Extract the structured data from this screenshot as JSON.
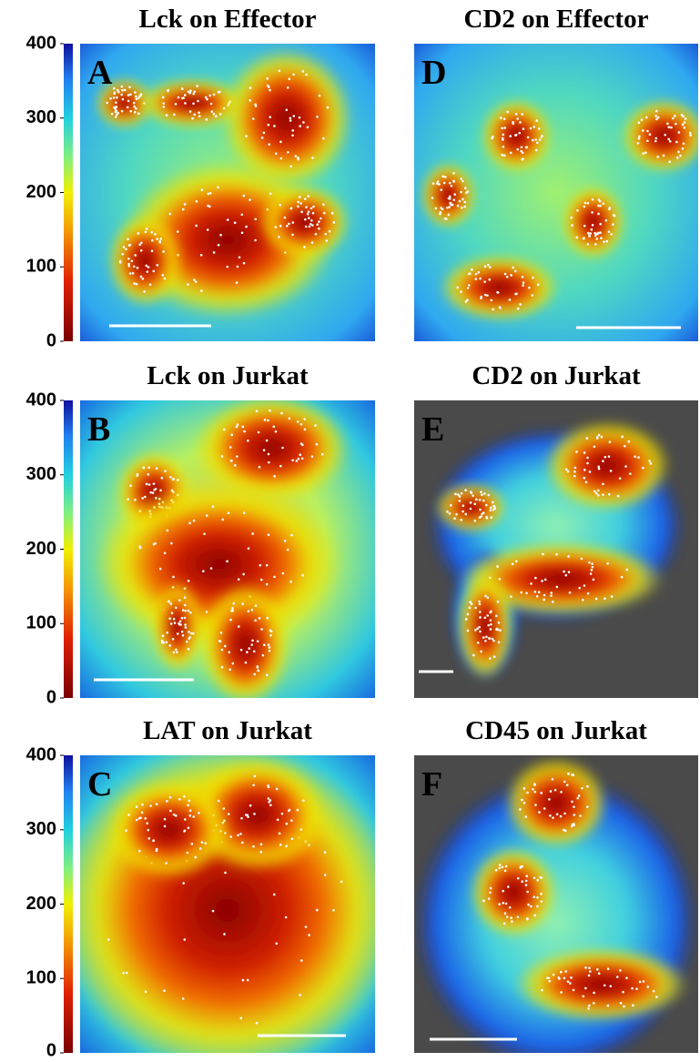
{
  "colorbar": {
    "lim": [
      0,
      400
    ],
    "ticks": [
      0,
      100,
      200,
      300,
      400
    ]
  },
  "panels": [
    {
      "title": "Lck on Effector",
      "letter": "A"
    },
    {
      "title": "Lck on Jurkat",
      "letter": "B"
    },
    {
      "title": "LAT on Jurkat",
      "letter": "C"
    },
    {
      "title": "CD2 on Effector",
      "letter": "D"
    },
    {
      "title": "CD2 on Jurkat",
      "letter": "E"
    },
    {
      "title": "CD45 on Jurkat",
      "letter": "F"
    }
  ]
}
